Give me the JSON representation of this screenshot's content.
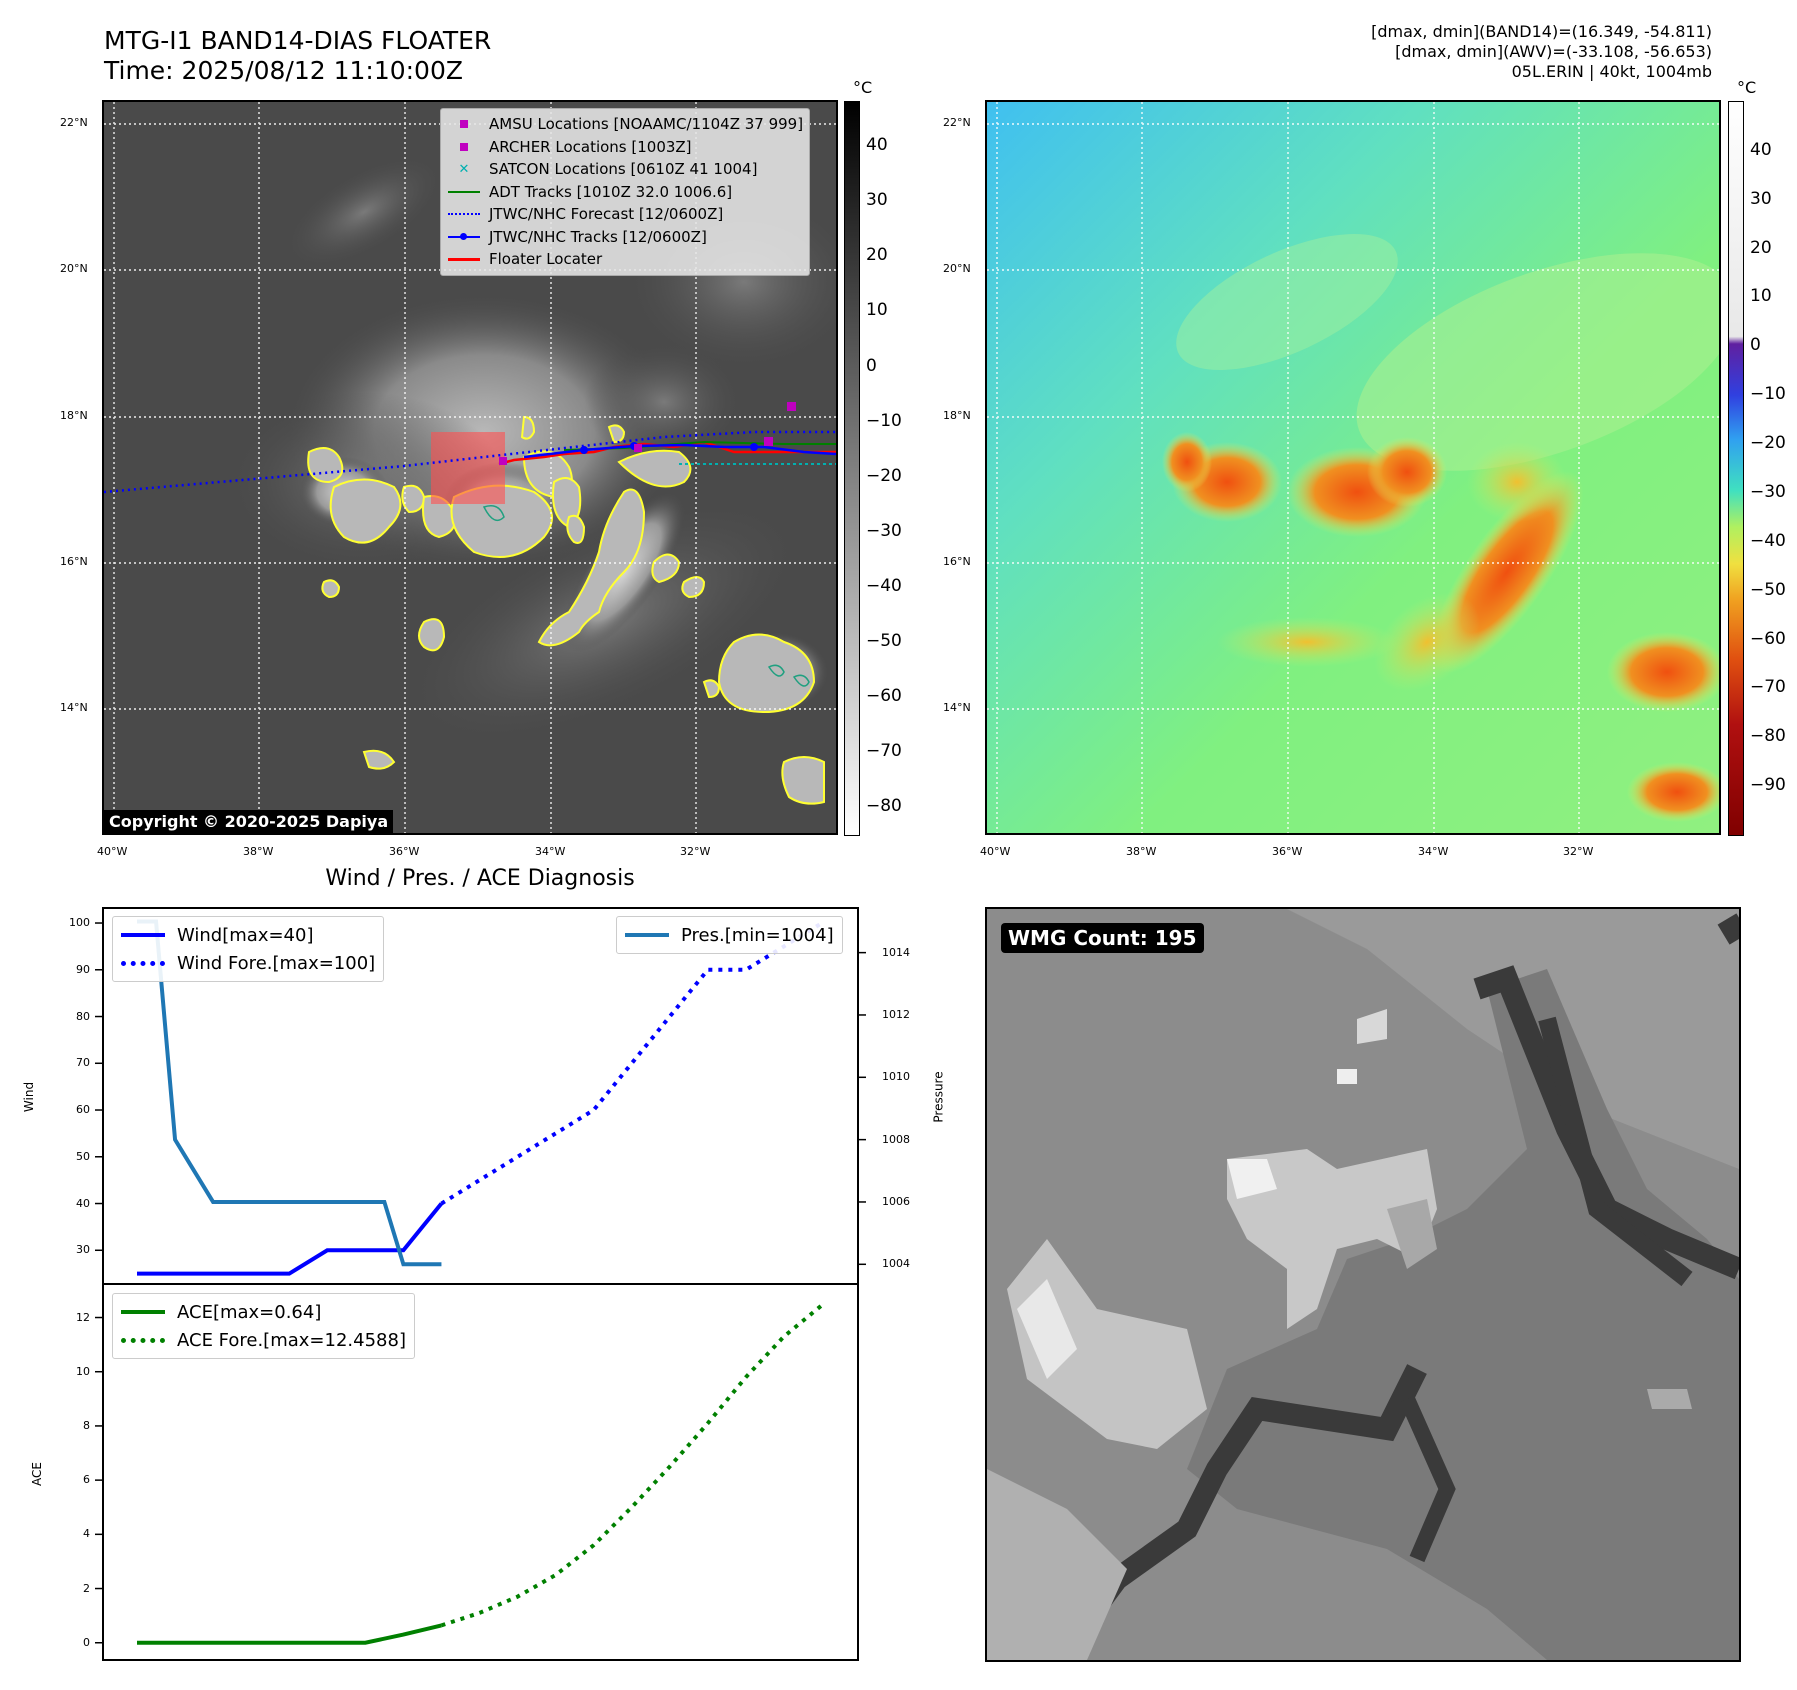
{
  "header": {
    "title": "MTG-I1 BAND14-DIAS FLOATER",
    "time": "Time: 2025/08/12 11:10:00Z",
    "info_line1": "[dmax, dmin](BAND14)=(16.349, -54.811)",
    "info_line2": "[dmax, dmin](AWV)=(-33.108, -56.653)",
    "info_line3": "05L.ERIN | 40kt, 1004mb"
  },
  "ir_panel": {
    "lat_labels": [
      "22°N",
      "20°N",
      "18°N",
      "16°N",
      "14°N"
    ],
    "lon_labels": [
      "40°W",
      "38°W",
      "36°W",
      "34°W",
      "32°W"
    ],
    "copyright": "Copyright © 2020-2025 Dapiya",
    "colorbar_unit": "°C",
    "colorbar_ticks": [
      "40",
      "30",
      "20",
      "10",
      "0",
      "−10",
      "−20",
      "−30",
      "−40",
      "−50",
      "−60",
      "−70",
      "−80"
    ],
    "legend": [
      {
        "label": "AMSU Locations [NOAAMC/1104Z 37 999]",
        "color": "#c000c0",
        "marker": "square"
      },
      {
        "label": "ARCHER Locations [1003Z]",
        "color": "#c000c0",
        "marker": "square"
      },
      {
        "label": "SATCON Locations [0610Z 41 1004]",
        "color": "#00b0b0",
        "marker": "x"
      },
      {
        "label": "ADT Tracks [1010Z 32.0 1006.6]",
        "color": "#008000",
        "marker": "line"
      },
      {
        "label": "JTWC/NHC Forecast [12/0600Z]",
        "color": "#0000ff",
        "marker": "dotted"
      },
      {
        "label": "JTWC/NHC Tracks [12/0600Z]",
        "color": "#0000ff",
        "marker": "line-dot"
      },
      {
        "label": "Floater Locater",
        "color": "#ff0000",
        "marker": "line"
      }
    ]
  },
  "wv_panel": {
    "lat_labels": [
      "22°N",
      "20°N",
      "18°N",
      "16°N",
      "14°N"
    ],
    "lon_labels": [
      "40°W",
      "38°W",
      "36°W",
      "34°W",
      "32°W"
    ],
    "colorbar_unit": "°C",
    "colorbar_ticks": [
      "40",
      "30",
      "20",
      "10",
      "0",
      "−10",
      "−20",
      "−30",
      "−40",
      "−50",
      "−60",
      "−70",
      "−80",
      "−90"
    ]
  },
  "wmg_panel": {
    "label": "WMG Count: 195"
  },
  "chart_data": [
    {
      "type": "line",
      "title": "Wind / Pres. / ACE Diagnosis",
      "ylabel": "Wind",
      "ylabel_right": "Pressure",
      "ylim": [
        23,
        103
      ],
      "ylim_right": [
        1003.4,
        1015.4
      ],
      "yticks": [
        "100",
        "90",
        "80",
        "70",
        "60",
        "50",
        "40",
        "30"
      ],
      "yticks_right": [
        "1014",
        "1012",
        "1010",
        "1008",
        "1006",
        "1004"
      ],
      "x": [
        0,
        1,
        2,
        3,
        4,
        5,
        6,
        7,
        8,
        9,
        10,
        11,
        12,
        13,
        14,
        15,
        16,
        17,
        18
      ],
      "series": [
        {
          "name": "Wind[max=40]",
          "axis": "left",
          "style": "solid",
          "color": "#0000ff",
          "x": [
            0,
            1,
            2,
            3,
            4,
            5,
            6,
            7,
            8
          ],
          "values": [
            25,
            25,
            25,
            25,
            25,
            30,
            30,
            30,
            40
          ]
        },
        {
          "name": "Wind Fore.[max=100]",
          "axis": "left",
          "style": "dotted",
          "color": "#0000ff",
          "x": [
            8,
            9,
            10,
            11,
            12,
            13,
            14,
            15,
            16,
            17,
            18
          ],
          "values": [
            40,
            45,
            50,
            55,
            60,
            70,
            80,
            90,
            90,
            95,
            100
          ]
        },
        {
          "name": "Pres.[min=1004]",
          "axis": "right",
          "style": "solid",
          "color": "#1f77b4",
          "x": [
            0,
            0.5,
            1,
            1.5,
            2,
            3,
            4,
            5,
            6,
            6.5,
            7,
            8
          ],
          "values": [
            1015,
            1015,
            1008,
            1007,
            1006,
            1006,
            1006,
            1006,
            1006,
            1006,
            1004,
            1004
          ]
        }
      ]
    },
    {
      "type": "line",
      "ylabel": "ACE",
      "ylim": [
        -0.6,
        13.2
      ],
      "yticks": [
        "12",
        "10",
        "8",
        "6",
        "4",
        "2",
        "0"
      ],
      "x": [
        0,
        1,
        2,
        3,
        4,
        5,
        6,
        7,
        8,
        9,
        10,
        11,
        12,
        13,
        14,
        15,
        16,
        17,
        18
      ],
      "series": [
        {
          "name": "ACE[max=0.64]",
          "style": "solid",
          "color": "#008000",
          "x": [
            0,
            1,
            2,
            3,
            4,
            5,
            6,
            7,
            8
          ],
          "values": [
            0,
            0,
            0,
            0,
            0,
            0,
            0,
            0.3,
            0.64
          ]
        },
        {
          "name": "ACE Fore.[max=12.4588]",
          "style": "dotted",
          "color": "#008000",
          "x": [
            8,
            9,
            10,
            11,
            12,
            13,
            14,
            15,
            16,
            17,
            18
          ],
          "values": [
            0.64,
            1.1,
            1.7,
            2.5,
            3.6,
            5.0,
            6.5,
            8.1,
            9.8,
            11.3,
            12.4588
          ]
        }
      ]
    }
  ]
}
